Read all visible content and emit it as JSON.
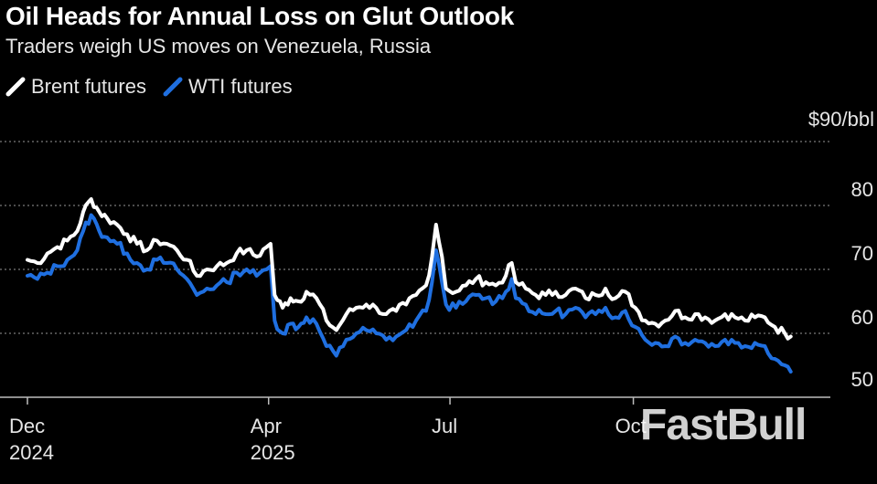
{
  "title": "Oil Heads for Annual Loss on Glut Outlook",
  "subtitle": "Traders weigh US moves on Venezuela, Russia",
  "watermark": "FastBull",
  "colors": {
    "brent": "#ffffff",
    "wti": "#1f6fe0",
    "grid": "#666666",
    "background": "#000000"
  },
  "chart_data": {
    "type": "line",
    "title": "Oil Heads for Annual Loss on Glut Outlook",
    "subtitle": "Traders weigh US moves on Venezuela, Russia",
    "unit_label": "$90/bbl",
    "ylim": [
      50,
      90
    ],
    "y_ticks": [
      {
        "value": 90,
        "label": "$90/bbl"
      },
      {
        "value": 80,
        "label": "80"
      },
      {
        "value": 70,
        "label": "70"
      },
      {
        "value": 60,
        "label": "60"
      },
      {
        "value": 50,
        "label": "50"
      }
    ],
    "xlim": [
      0,
      390
    ],
    "x_ticks": [
      {
        "x": 0,
        "month": "Dec",
        "year": "2024"
      },
      {
        "x": 121,
        "month": "Apr",
        "year": "2025"
      },
      {
        "x": 212,
        "month": "Jul",
        "year": ""
      },
      {
        "x": 304,
        "month": "Oct",
        "year": ""
      }
    ],
    "series": [
      {
        "name": "Brent futures",
        "points": [
          [
            0,
            71.5
          ],
          [
            5,
            71
          ],
          [
            10,
            72.5
          ],
          [
            15,
            73.5
          ],
          [
            20,
            74.5
          ],
          [
            25,
            76
          ],
          [
            28,
            79
          ],
          [
            32,
            81
          ],
          [
            36,
            79
          ],
          [
            40,
            78
          ],
          [
            45,
            77
          ],
          [
            50,
            75.5
          ],
          [
            55,
            74
          ],
          [
            60,
            73
          ],
          [
            65,
            74.5
          ],
          [
            70,
            74
          ],
          [
            75,
            73
          ],
          [
            80,
            71.5
          ],
          [
            85,
            69
          ],
          [
            90,
            70
          ],
          [
            95,
            70.5
          ],
          [
            100,
            71
          ],
          [
            105,
            72.5
          ],
          [
            110,
            73
          ],
          [
            115,
            72
          ],
          [
            120,
            73.5
          ],
          [
            122,
            74
          ],
          [
            124,
            66
          ],
          [
            128,
            64
          ],
          [
            132,
            65.5
          ],
          [
            136,
            65
          ],
          [
            140,
            66.5
          ],
          [
            145,
            65.5
          ],
          [
            150,
            62
          ],
          [
            155,
            60.5
          ],
          [
            160,
            63
          ],
          [
            165,
            64
          ],
          [
            170,
            64.5
          ],
          [
            175,
            64
          ],
          [
            180,
            63
          ],
          [
            185,
            63.5
          ],
          [
            190,
            64.5
          ],
          [
            195,
            66
          ],
          [
            200,
            67.5
          ],
          [
            203,
            72
          ],
          [
            205,
            77
          ],
          [
            208,
            72
          ],
          [
            210,
            67
          ],
          [
            215,
            66.5
          ],
          [
            220,
            67.5
          ],
          [
            225,
            68.5
          ],
          [
            230,
            68
          ],
          [
            235,
            67.5
          ],
          [
            240,
            69
          ],
          [
            243,
            71
          ],
          [
            245,
            68
          ],
          [
            250,
            67
          ],
          [
            255,
            66
          ],
          [
            260,
            66
          ],
          [
            265,
            66.5
          ],
          [
            270,
            66
          ],
          [
            275,
            67
          ],
          [
            280,
            65.5
          ],
          [
            285,
            66
          ],
          [
            290,
            67
          ],
          [
            295,
            65.5
          ],
          [
            300,
            66.5
          ],
          [
            305,
            64
          ],
          [
            310,
            62
          ],
          [
            315,
            61.5
          ],
          [
            320,
            62
          ],
          [
            325,
            63.5
          ],
          [
            330,
            62.5
          ],
          [
            335,
            63
          ],
          [
            340,
            62.5
          ],
          [
            345,
            62
          ],
          [
            350,
            63
          ],
          [
            355,
            62.5
          ],
          [
            360,
            62
          ],
          [
            365,
            62.5
          ],
          [
            370,
            62.5
          ],
          [
            375,
            61
          ],
          [
            380,
            60
          ],
          [
            383,
            59.5
          ]
        ]
      },
      {
        "name": "WTI futures",
        "points": [
          [
            0,
            69
          ],
          [
            5,
            68.5
          ],
          [
            10,
            69.5
          ],
          [
            15,
            70.5
          ],
          [
            20,
            71.5
          ],
          [
            25,
            73
          ],
          [
            28,
            76
          ],
          [
            32,
            78.5
          ],
          [
            36,
            76
          ],
          [
            40,
            75
          ],
          [
            45,
            74
          ],
          [
            50,
            72.5
          ],
          [
            55,
            71
          ],
          [
            60,
            70
          ],
          [
            65,
            71.5
          ],
          [
            70,
            71
          ],
          [
            75,
            70
          ],
          [
            80,
            68.5
          ],
          [
            85,
            66
          ],
          [
            90,
            67
          ],
          [
            95,
            67.5
          ],
          [
            100,
            68
          ],
          [
            105,
            69.5
          ],
          [
            110,
            70
          ],
          [
            115,
            69
          ],
          [
            120,
            70
          ],
          [
            122,
            70.5
          ],
          [
            124,
            62
          ],
          [
            128,
            60
          ],
          [
            132,
            61.5
          ],
          [
            136,
            61
          ],
          [
            140,
            62.5
          ],
          [
            145,
            61.5
          ],
          [
            150,
            58
          ],
          [
            155,
            56.5
          ],
          [
            160,
            59
          ],
          [
            165,
            60
          ],
          [
            170,
            60.5
          ],
          [
            175,
            60
          ],
          [
            180,
            59
          ],
          [
            185,
            59.5
          ],
          [
            190,
            60.5
          ],
          [
            195,
            62
          ],
          [
            200,
            63.5
          ],
          [
            203,
            68
          ],
          [
            205,
            73
          ],
          [
            208,
            68
          ],
          [
            210,
            64.5
          ],
          [
            215,
            64
          ],
          [
            220,
            65
          ],
          [
            225,
            66
          ],
          [
            230,
            65.5
          ],
          [
            235,
            65
          ],
          [
            240,
            66.5
          ],
          [
            243,
            68.5
          ],
          [
            245,
            65.5
          ],
          [
            250,
            64.5
          ],
          [
            255,
            63
          ],
          [
            260,
            63
          ],
          [
            265,
            63.5
          ],
          [
            270,
            63
          ],
          [
            275,
            64
          ],
          [
            280,
            62.5
          ],
          [
            285,
            63
          ],
          [
            290,
            64
          ],
          [
            295,
            62.5
          ],
          [
            300,
            63.5
          ],
          [
            305,
            61
          ],
          [
            310,
            59
          ],
          [
            315,
            58.5
          ],
          [
            320,
            58
          ],
          [
            325,
            59.5
          ],
          [
            330,
            58.5
          ],
          [
            335,
            59
          ],
          [
            340,
            58.5
          ],
          [
            345,
            58
          ],
          [
            350,
            59
          ],
          [
            355,
            58.5
          ],
          [
            360,
            58
          ],
          [
            365,
            58.5
          ],
          [
            370,
            58
          ],
          [
            375,
            56
          ],
          [
            380,
            55
          ],
          [
            383,
            54
          ]
        ]
      }
    ]
  }
}
